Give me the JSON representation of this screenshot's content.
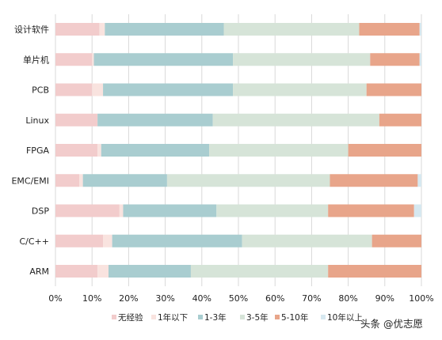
{
  "chart_data": {
    "type": "bar",
    "orientation": "horizontal",
    "stacked": "percent",
    "categories": [
      "设计软件",
      "单片机",
      "PCB",
      "Linux",
      "FPGA",
      "EMC/EMI",
      "DSP",
      "C/C++",
      "ARM"
    ],
    "series": [
      {
        "name": "无经验",
        "color": "#f2cccc",
        "values": [
          12,
          10,
          10,
          11.5,
          11.5,
          6.5,
          17.5,
          13,
          11.5
        ]
      },
      {
        "name": "1年以下",
        "color": "#f9e3df",
        "values": [
          1.5,
          0.5,
          3,
          0,
          1,
          1,
          1,
          2.5,
          3
        ]
      },
      {
        "name": "1-3年",
        "color": "#a9cdd0",
        "values": [
          32.5,
          38,
          35.5,
          31.5,
          29.5,
          23,
          25.5,
          35.5,
          22.5
        ]
      },
      {
        "name": "3-5年",
        "color": "#d6e4d8",
        "values": [
          37,
          37.5,
          36.5,
          45.5,
          38,
          44.5,
          30.5,
          35.5,
          37.5
        ]
      },
      {
        "name": "5-10年",
        "color": "#e8a58a",
        "values": [
          16.5,
          13.5,
          15,
          11.5,
          20,
          24,
          23.5,
          13.5,
          25.5
        ]
      },
      {
        "name": "10年以上",
        "color": "#d6e8f0",
        "values": [
          0.5,
          0.5,
          0,
          0,
          0,
          1,
          2,
          0,
          0
        ]
      }
    ],
    "xlim": [
      0,
      100
    ],
    "xticks": [
      "0%",
      "10%",
      "20%",
      "30%",
      "40%",
      "50%",
      "60%",
      "70%",
      "80%",
      "90%",
      "100%"
    ],
    "grid": "vertical",
    "legend": "bottom",
    "title": "",
    "xlabel": "",
    "ylabel": ""
  },
  "watermark": "头条 @优志愿"
}
